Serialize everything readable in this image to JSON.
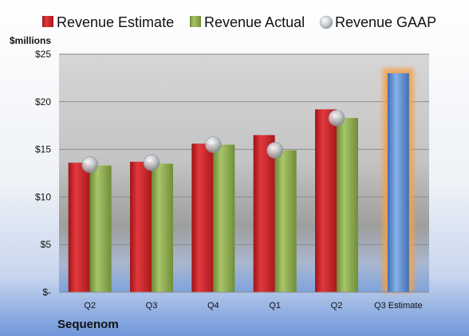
{
  "chart_data": {
    "type": "bar",
    "unit_label": "$millions",
    "company": "Sequenom",
    "categories": [
      "Q2",
      "Q3",
      "Q4",
      "Q1",
      "Q2",
      "Q3 Estimate"
    ],
    "series": [
      {
        "name": "Revenue Estimate",
        "color": "#c0282d",
        "kind": "bar",
        "values": [
          13.6,
          13.7,
          15.6,
          16.5,
          19.2,
          null
        ]
      },
      {
        "name": "Revenue Actual",
        "color": "#8fae4e",
        "kind": "bar",
        "values": [
          13.3,
          13.5,
          15.5,
          14.9,
          18.3,
          null
        ]
      },
      {
        "name": "Revenue GAAP",
        "color": "#b9bfc9",
        "kind": "marker",
        "values": [
          13.4,
          13.6,
          15.5,
          14.9,
          18.3,
          null
        ]
      }
    ],
    "estimate": {
      "category_index": 5,
      "value": 23.0,
      "color": "#5b8ed1",
      "glow_color": "#f4a04a"
    },
    "yticks": [
      {
        "value": 0,
        "label": "$-"
      },
      {
        "value": 5,
        "label": "$5"
      },
      {
        "value": 10,
        "label": "$10"
      },
      {
        "value": 15,
        "label": "$15"
      },
      {
        "value": 20,
        "label": "$20"
      },
      {
        "value": 25,
        "label": "$25"
      }
    ],
    "ylim": [
      0,
      25
    ],
    "grid": true,
    "legend_position": "top"
  }
}
